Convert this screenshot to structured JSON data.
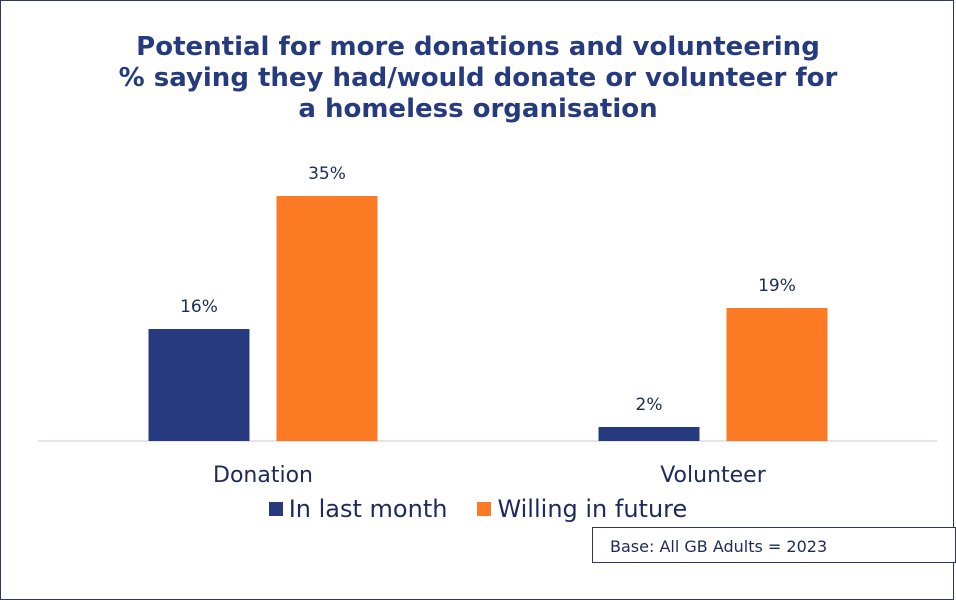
{
  "title_lines": [
    "Potential for more donations and volunteering",
    "% saying they had/would donate or volunteer for",
    "a homeless organisation"
  ],
  "footnote": "Base: All GB Adults = 2023",
  "colors": {
    "series1": "#283a7f",
    "series2": "#fc7a24",
    "axis": "#c8c8d4"
  },
  "chart_data": {
    "type": "bar",
    "title": "Potential for more donations and volunteering % saying they had/would donate or volunteer for a homeless organisation",
    "categories": [
      "Donation",
      "Volunteer"
    ],
    "series": [
      {
        "name": "In last month",
        "values": [
          16,
          2
        ],
        "labels": [
          "16%",
          "2%"
        ]
      },
      {
        "name": "Willing in future",
        "values": [
          35,
          19
        ],
        "labels": [
          "35%",
          "19%"
        ]
      }
    ],
    "ylim": [
      0,
      40
    ],
    "grid": false,
    "legend": "bottom",
    "xlabel": "",
    "ylabel": ""
  }
}
